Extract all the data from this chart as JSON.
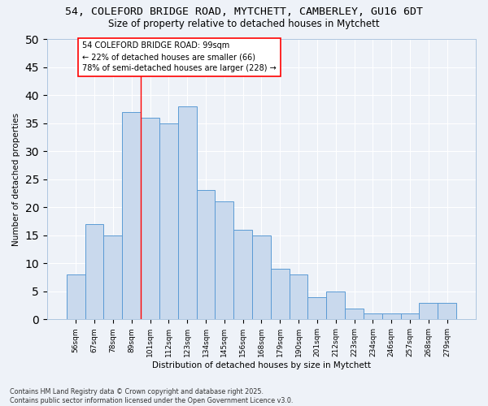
{
  "title1": "54, COLEFORD BRIDGE ROAD, MYTCHETT, CAMBERLEY, GU16 6DT",
  "title2": "Size of property relative to detached houses in Mytchett",
  "xlabel": "Distribution of detached houses by size in Mytchett",
  "ylabel": "Number of detached properties",
  "categories": [
    "56sqm",
    "67sqm",
    "78sqm",
    "89sqm",
    "101sqm",
    "112sqm",
    "123sqm",
    "134sqm",
    "145sqm",
    "156sqm",
    "168sqm",
    "179sqm",
    "190sqm",
    "201sqm",
    "212sqm",
    "223sqm",
    "234sqm",
    "246sqm",
    "257sqm",
    "268sqm",
    "279sqm"
  ],
  "values": [
    8,
    17,
    15,
    37,
    36,
    35,
    38,
    23,
    21,
    16,
    15,
    9,
    8,
    4,
    5,
    2,
    1,
    1,
    1,
    3,
    3
  ],
  "bar_color": "#c9d9ed",
  "bar_edge_color": "#5b9bd5",
  "vline_x_idx": 4,
  "vline_color": "red",
  "annotation_text": "54 COLEFORD BRIDGE ROAD: 99sqm\n← 22% of detached houses are smaller (66)\n78% of semi-detached houses are larger (228) →",
  "annotation_box_color": "white",
  "annotation_box_edge_color": "red",
  "ylim": [
    0,
    50
  ],
  "yticks": [
    0,
    5,
    10,
    15,
    20,
    25,
    30,
    35,
    40,
    45,
    50
  ],
  "bg_color": "#eef2f8",
  "grid_color": "#ffffff",
  "footnote": "Contains HM Land Registry data © Crown copyright and database right 2025.\nContains public sector information licensed under the Open Government Licence v3.0.",
  "title_fontsize": 9.5,
  "subtitle_fontsize": 8.5,
  "label_fontsize": 7.5,
  "tick_fontsize": 6.5,
  "bar_width": 1.0
}
